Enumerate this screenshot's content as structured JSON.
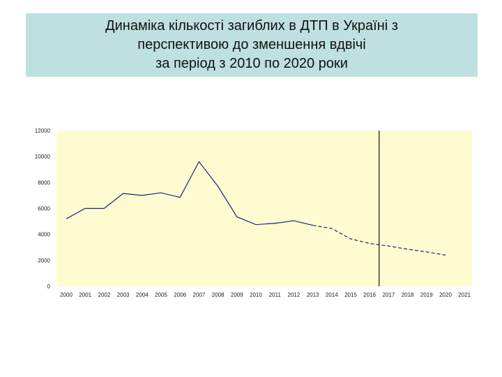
{
  "slide": {
    "title_lines": [
      "Динаміка кількості загиблих в ДТП в Україні з",
      "перспективою до зменшення вдвічі",
      "за період з 2010 по 2020 роки"
    ]
  },
  "colors": {
    "title_background": "#bfe0e0",
    "plot_background": "#fffbd0",
    "line": "#1a237e",
    "divider": "#111111"
  },
  "chart_data": {
    "type": "line",
    "title": "",
    "xlabel": "",
    "ylabel": "",
    "categories": [
      "2000",
      "2001",
      "2002",
      "2003",
      "2004",
      "2005",
      "2006",
      "2007",
      "2008",
      "2009",
      "2010",
      "2011",
      "2012",
      "2013",
      "2014",
      "2015",
      "2016",
      "2017",
      "2018",
      "2019",
      "2020",
      "2021"
    ],
    "ylim": [
      0,
      12000
    ],
    "yticks": [
      0,
      2000,
      4000,
      6000,
      8000,
      10000,
      12000
    ],
    "grid": false,
    "series": [
      {
        "style": "solid",
        "x": [
          "2000",
          "2001",
          "2002",
          "2003",
          "2004",
          "2005",
          "2006",
          "2007",
          "2008",
          "2009",
          "2010",
          "2011",
          "2012",
          "2013"
        ],
        "values": [
          5200,
          6000,
          6000,
          7150,
          7000,
          7200,
          6850,
          9600,
          7700,
          5350,
          4750,
          4850,
          5050,
          4700
        ]
      },
      {
        "style": "dashed",
        "x": [
          "2013",
          "2014",
          "2015",
          "2016",
          "2017",
          "2018",
          "2019",
          "2020"
        ],
        "values": [
          4700,
          4450,
          3650,
          3300,
          3100,
          2850,
          2650,
          2400
        ]
      }
    ],
    "vertical_marker_x": 16.5
  }
}
